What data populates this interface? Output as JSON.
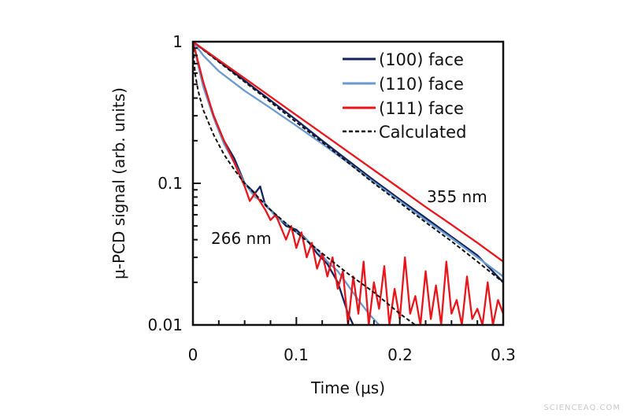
{
  "watermark": "SCIENCEAQ.COM",
  "chart_data": {
    "type": "line",
    "title": "",
    "xlabel": "Time (μs)",
    "ylabel": "μ-PCD signal (arb. units)",
    "xlim": [
      0,
      0.3
    ],
    "ylim": [
      0.01,
      1
    ],
    "yscale": "log",
    "grid": false,
    "legend_position": "top-right",
    "x_ticks": [
      "0",
      "0.1",
      "0.2",
      "0.3"
    ],
    "y_ticks": [
      "0.01",
      "0.1",
      "1"
    ],
    "legend": [
      {
        "name": "(100) face",
        "color": "#13235a",
        "style": "solid"
      },
      {
        "name": "(110) face",
        "color": "#6b9ad0",
        "style": "solid"
      },
      {
        "name": "(111) face",
        "color": "#e8161b",
        "style": "solid"
      },
      {
        "name": "Calculated",
        "color": "#111111",
        "style": "dashed"
      }
    ],
    "annotations": [
      "355 nm",
      "266 nm"
    ],
    "series": [
      {
        "name": "(100) face",
        "group": "355 nm",
        "x": [
          0,
          0.025,
          0.05,
          0.075,
          0.1,
          0.125,
          0.15,
          0.175,
          0.2,
          0.225,
          0.25,
          0.275,
          0.3
        ],
        "y": [
          1,
          0.73,
          0.53,
          0.385,
          0.28,
          0.2,
          0.145,
          0.105,
          0.077,
          0.057,
          0.042,
          0.031,
          0.02
        ]
      },
      {
        "name": "(110) face",
        "group": "355 nm",
        "x": [
          0,
          0.01,
          0.025,
          0.05,
          0.075,
          0.1,
          0.125,
          0.15,
          0.175,
          0.2,
          0.225,
          0.25,
          0.275,
          0.3
        ],
        "y": [
          1,
          0.8,
          0.62,
          0.45,
          0.34,
          0.255,
          0.19,
          0.14,
          0.102,
          0.075,
          0.055,
          0.041,
          0.03,
          0.022
        ]
      },
      {
        "name": "(111) face",
        "group": "355 nm",
        "x": [
          0,
          0.025,
          0.05,
          0.075,
          0.1,
          0.125,
          0.15,
          0.175,
          0.2,
          0.225,
          0.25,
          0.275,
          0.3
        ],
        "y": [
          1,
          0.742,
          0.551,
          0.409,
          0.303,
          0.225,
          0.167,
          0.124,
          0.092,
          0.068,
          0.051,
          0.038,
          0.028
        ]
      },
      {
        "name": "Calculated",
        "group": "355 nm",
        "x": [
          0,
          0.025,
          0.05,
          0.075,
          0.1,
          0.125,
          0.15,
          0.175,
          0.2,
          0.225,
          0.25,
          0.275,
          0.3
        ],
        "y": [
          1,
          0.72,
          0.52,
          0.375,
          0.27,
          0.195,
          0.14,
          0.1,
          0.073,
          0.053,
          0.039,
          0.028,
          0.02
        ]
      },
      {
        "name": "(100) face",
        "group": "266 nm",
        "x": [
          0,
          0.005,
          0.01,
          0.02,
          0.03,
          0.04,
          0.05,
          0.06,
          0.065,
          0.07,
          0.08,
          0.09,
          0.1,
          0.11,
          0.12,
          0.13,
          0.14,
          0.15,
          0.155
        ],
        "y": [
          1,
          0.7,
          0.5,
          0.3,
          0.2,
          0.15,
          0.1,
          0.085,
          0.095,
          0.07,
          0.06,
          0.05,
          0.047,
          0.04,
          0.032,
          0.027,
          0.02,
          0.012,
          0.01
        ]
      },
      {
        "name": "(110) face",
        "group": "266 nm",
        "x": [
          0,
          0.005,
          0.01,
          0.02,
          0.03,
          0.04,
          0.05,
          0.06,
          0.07,
          0.08,
          0.09,
          0.1,
          0.11,
          0.12,
          0.13,
          0.14,
          0.15,
          0.16,
          0.17,
          0.18
        ],
        "y": [
          1,
          0.68,
          0.48,
          0.29,
          0.19,
          0.14,
          0.1,
          0.08,
          0.072,
          0.058,
          0.052,
          0.045,
          0.04,
          0.034,
          0.028,
          0.024,
          0.019,
          0.015,
          0.012,
          0.01
        ]
      },
      {
        "name": "(111) face",
        "group": "266 nm",
        "x": [
          0,
          0.005,
          0.01,
          0.02,
          0.03,
          0.04,
          0.05,
          0.055,
          0.06,
          0.07,
          0.075,
          0.08,
          0.09,
          0.095,
          0.1,
          0.105,
          0.11,
          0.115,
          0.12,
          0.125,
          0.13,
          0.135,
          0.14,
          0.145,
          0.15,
          0.155,
          0.16,
          0.165,
          0.17,
          0.175,
          0.18,
          0.185,
          0.19,
          0.195,
          0.2,
          0.205,
          0.21,
          0.215,
          0.22,
          0.225,
          0.23,
          0.235,
          0.24,
          0.245,
          0.25,
          0.255,
          0.26,
          0.265,
          0.27,
          0.275,
          0.28,
          0.285,
          0.29,
          0.295,
          0.3
        ],
        "y": [
          1,
          0.72,
          0.52,
          0.3,
          0.2,
          0.14,
          0.095,
          0.075,
          0.085,
          0.065,
          0.055,
          0.06,
          0.04,
          0.05,
          0.035,
          0.045,
          0.03,
          0.038,
          0.025,
          0.032,
          0.022,
          0.03,
          0.018,
          0.024,
          0.01,
          0.022,
          0.012,
          0.028,
          0.01,
          0.02,
          0.013,
          0.026,
          0.01,
          0.018,
          0.011,
          0.03,
          0.012,
          0.016,
          0.01,
          0.024,
          0.011,
          0.019,
          0.01,
          0.028,
          0.012,
          0.015,
          0.01,
          0.022,
          0.011,
          0.013,
          0.01,
          0.02,
          0.01,
          0.015,
          0.012
        ]
      },
      {
        "name": "Calculated",
        "group": "266 nm",
        "x": [
          0,
          0.002,
          0.005,
          0.01,
          0.02,
          0.03,
          0.04,
          0.05,
          0.075,
          0.1,
          0.125,
          0.15,
          0.175,
          0.2,
          0.215
        ],
        "y": [
          1,
          0.6,
          0.45,
          0.33,
          0.22,
          0.16,
          0.125,
          0.1,
          0.065,
          0.045,
          0.032,
          0.023,
          0.017,
          0.012,
          0.01
        ]
      }
    ]
  }
}
